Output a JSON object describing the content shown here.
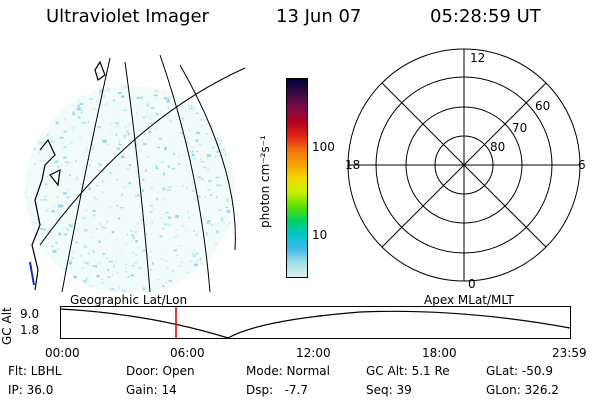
{
  "header": {
    "title": "Ultraviolet Imager",
    "date": "13 Jun 07",
    "time": "05:28:59 UT"
  },
  "colorbar": {
    "label": "photon cm⁻²s⁻¹",
    "ticks": [
      "100",
      "10"
    ],
    "colors": [
      "#000033",
      "#3a0a45",
      "#7a0a4a",
      "#b00020",
      "#e0201a",
      "#f07010",
      "#f6a000",
      "#f2d800",
      "#c8f000",
      "#60e000",
      "#00d060",
      "#00c8c8",
      "#40b8e8",
      "#a0e0e8",
      "#e0f0f0"
    ]
  },
  "polar_plot": {
    "mlt_labels": {
      "top": "12",
      "left": "18",
      "right": "6",
      "bottom": "0"
    },
    "lat_labels": [
      "60",
      "70",
      "80"
    ]
  },
  "timeline": {
    "ylabel": "GC Alt",
    "yticks": [
      "9.0",
      "1.8"
    ],
    "left_caption": "Geographic Lat/Lon",
    "right_caption": "Apex MLat/MLT",
    "xticks": [
      "00:00",
      "06:00",
      "12:00",
      "18:00",
      "23:59"
    ],
    "marker_color": "#d00000"
  },
  "info": {
    "row1": {
      "flt": "Flt: LBHL",
      "door": "Door: Open",
      "mode": "Mode: Normal",
      "gcalt": "GC Alt: 5.1 Re",
      "glat": "GLat: -50.9"
    },
    "row2": {
      "ip": "IP: 36.0",
      "gain": "Gain: 14",
      "dsp": "Dsp:   -7.7",
      "seq": "Seq: 39",
      "glon": "GLon: 326.2"
    }
  }
}
